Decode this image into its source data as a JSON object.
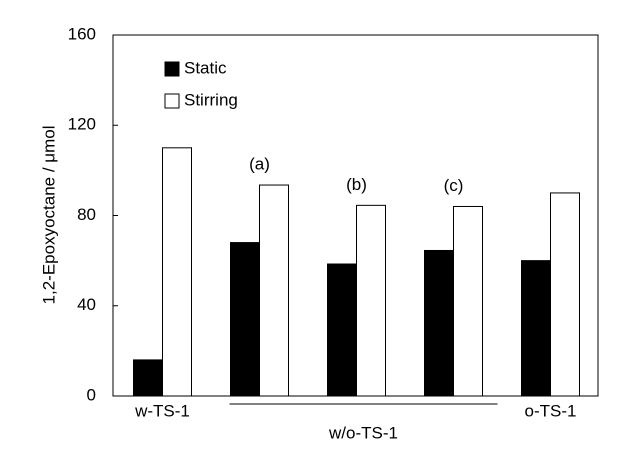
{
  "chart_data": {
    "type": "bar",
    "y_label": "1,2-Epoxyoctane / μmol",
    "categories": [
      "w-TS-1",
      null,
      null,
      null,
      "o-TS-1"
    ],
    "group_label": "w/o-TS-1",
    "group_annotations": [
      "(a)",
      "(b)",
      "(c)"
    ],
    "series": [
      {
        "name": "Static",
        "color": "#000000",
        "values": [
          16,
          68,
          58.5,
          64.5,
          60
        ]
      },
      {
        "name": "Stirring",
        "color": "#ffffff",
        "values": [
          110,
          93.5,
          84.5,
          84,
          90
        ]
      }
    ],
    "ylim": [
      0,
      160
    ],
    "yticks": [
      0,
      40,
      80,
      120,
      160
    ],
    "grid": false,
    "legend": "upper left"
  }
}
